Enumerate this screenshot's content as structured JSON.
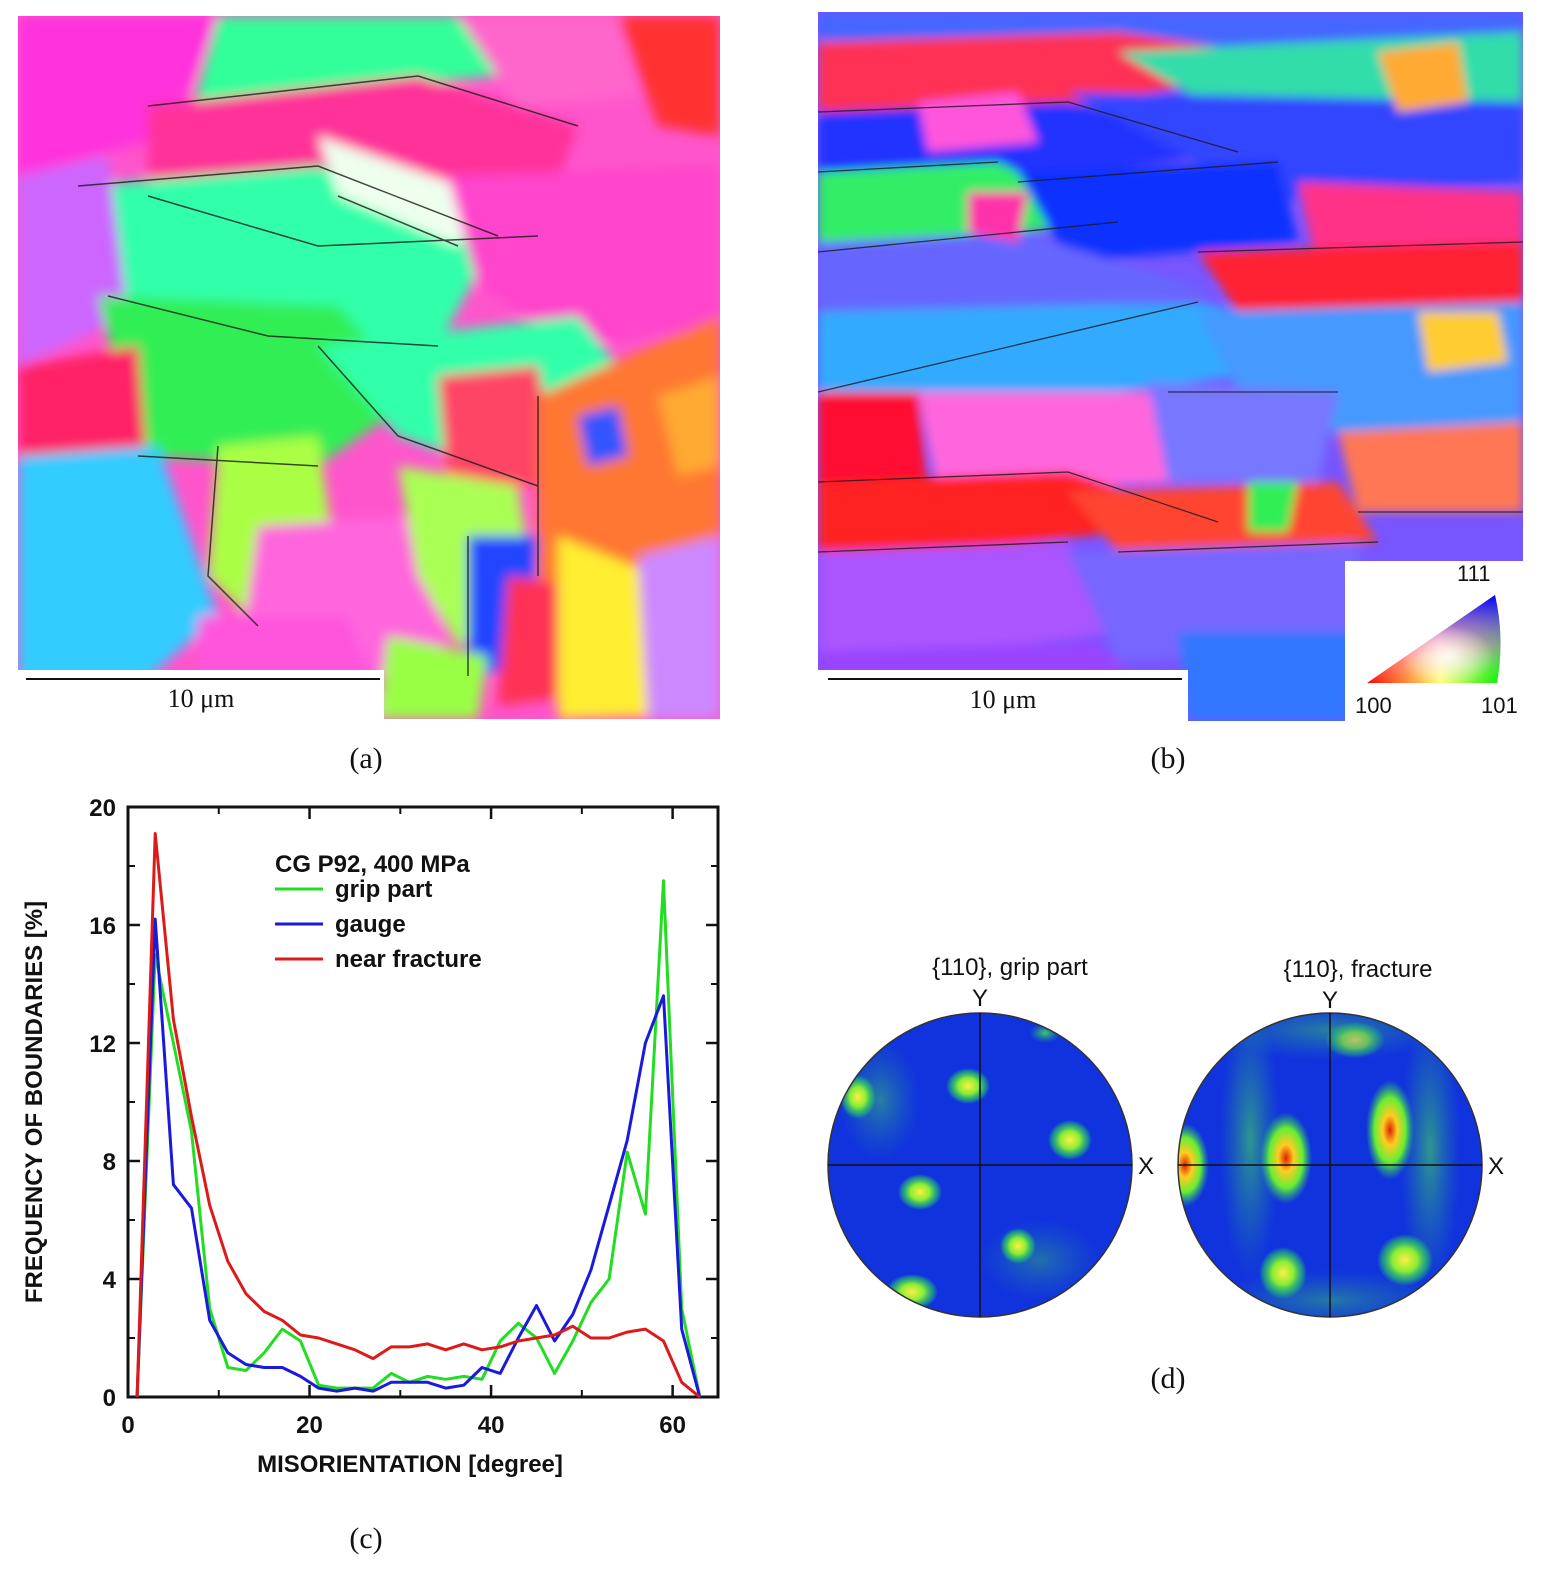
{
  "panels": {
    "a": {
      "label": "(a)",
      "scale_bar": "10 μm"
    },
    "b": {
      "label": "(b)",
      "scale_bar": "10 μm",
      "ipf_key": {
        "corner_111": "111",
        "corner_100": "100",
        "corner_101": "101"
      }
    },
    "c": {
      "label": "(c)"
    },
    "d": {
      "label": "(d)",
      "pole_figures": [
        {
          "title": "{110}, grip part",
          "axis_y": "Y",
          "axis_x": "X"
        },
        {
          "title": "{110}, fracture",
          "axis_y": "Y",
          "axis_x": "X"
        }
      ]
    }
  },
  "colors": {
    "grip_part": "#22dd22",
    "gauge": "#1a1adc",
    "near_fracture": "#dd1a1a"
  },
  "chart_data": {
    "type": "line",
    "title": "CG P92, 400 MPa",
    "xlabel": "MISORIENTATION [degree]",
    "ylabel": "FREQUENCY OF BOUNDARIES [%]",
    "xlim": [
      0,
      65
    ],
    "ylim": [
      0,
      20
    ],
    "xticks": [
      0,
      20,
      40,
      60
    ],
    "yticks": [
      0,
      4,
      8,
      12,
      16,
      20
    ],
    "legend_position": "top-center",
    "grid": false,
    "series": [
      {
        "name": "grip part",
        "color": "#22dd22",
        "x": [
          1,
          3,
          5,
          7,
          9,
          11,
          13,
          15,
          17,
          19,
          21,
          23,
          25,
          27,
          29,
          31,
          33,
          35,
          37,
          39,
          41,
          43,
          45,
          47,
          49,
          51,
          53,
          55,
          57,
          59,
          61,
          63
        ],
        "y": [
          0,
          15.0,
          12.0,
          9.0,
          3.0,
          1.0,
          0.9,
          1.5,
          2.3,
          1.9,
          0.4,
          0.3,
          0.3,
          0.3,
          0.8,
          0.5,
          0.7,
          0.6,
          0.7,
          0.6,
          1.9,
          2.5,
          2.0,
          0.8,
          1.9,
          3.2,
          4.0,
          8.3,
          6.2,
          17.5,
          3.0,
          0
        ]
      },
      {
        "name": "gauge",
        "color": "#1a1adc",
        "x": [
          1,
          3,
          5,
          7,
          9,
          11,
          13,
          15,
          17,
          19,
          21,
          23,
          25,
          27,
          29,
          31,
          33,
          35,
          37,
          39,
          41,
          43,
          45,
          47,
          49,
          51,
          53,
          55,
          57,
          59,
          61,
          63
        ],
        "y": [
          0,
          16.2,
          7.2,
          6.4,
          2.6,
          1.5,
          1.1,
          1.0,
          1.0,
          0.7,
          0.3,
          0.2,
          0.3,
          0.2,
          0.5,
          0.5,
          0.5,
          0.3,
          0.4,
          1.0,
          0.8,
          2.0,
          3.1,
          1.9,
          2.8,
          4.3,
          6.5,
          8.7,
          12.0,
          13.6,
          2.3,
          0
        ]
      },
      {
        "name": "near fracture",
        "color": "#dd1a1a",
        "x": [
          1,
          3,
          5,
          7,
          9,
          11,
          13,
          15,
          17,
          19,
          21,
          23,
          25,
          27,
          29,
          31,
          33,
          35,
          37,
          39,
          41,
          43,
          45,
          47,
          49,
          51,
          53,
          55,
          57,
          59,
          61,
          63
        ],
        "y": [
          0,
          19.1,
          12.8,
          9.5,
          6.5,
          4.6,
          3.5,
          2.9,
          2.6,
          2.1,
          2.0,
          1.8,
          1.6,
          1.3,
          1.7,
          1.7,
          1.8,
          1.6,
          1.8,
          1.6,
          1.7,
          1.9,
          2.0,
          2.1,
          2.4,
          2.0,
          2.0,
          2.2,
          2.3,
          1.9,
          0.5,
          0
        ]
      }
    ]
  }
}
